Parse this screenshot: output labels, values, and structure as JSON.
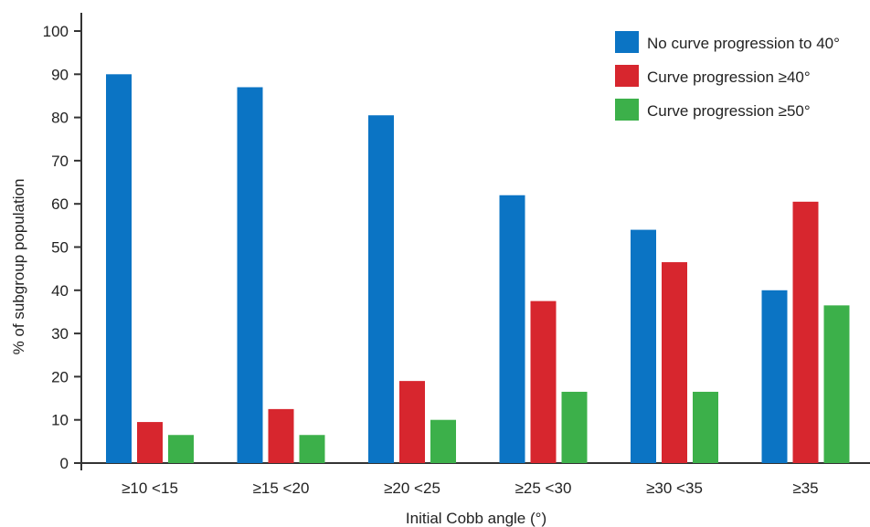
{
  "chart_data": {
    "type": "bar",
    "title": "",
    "xlabel": "Initial Cobb angle (°)",
    "ylabel": "% of subgroup population",
    "ylim": [
      0,
      100
    ],
    "yticks": [
      0,
      10,
      20,
      30,
      40,
      50,
      60,
      70,
      80,
      90,
      100
    ],
    "grid": false,
    "legend_position": "top-right",
    "categories": [
      "≥10 <15",
      "≥15 <20",
      "≥20 <25",
      "≥25 <30",
      "≥30 <35",
      "≥35"
    ],
    "series": [
      {
        "name": "No curve progression to 40°",
        "color": "#0b74c4",
        "values": [
          90,
          87,
          80.5,
          62,
          54,
          40
        ]
      },
      {
        "name": "Curve progression ≥40°",
        "color": "#d7262e",
        "values": [
          9.5,
          12.5,
          19,
          37.5,
          46.5,
          60.5
        ]
      },
      {
        "name": "Curve progression ≥50°",
        "color": "#3cb04a",
        "values": [
          6.5,
          6.5,
          10,
          16.5,
          16.5,
          36.5
        ]
      }
    ]
  }
}
